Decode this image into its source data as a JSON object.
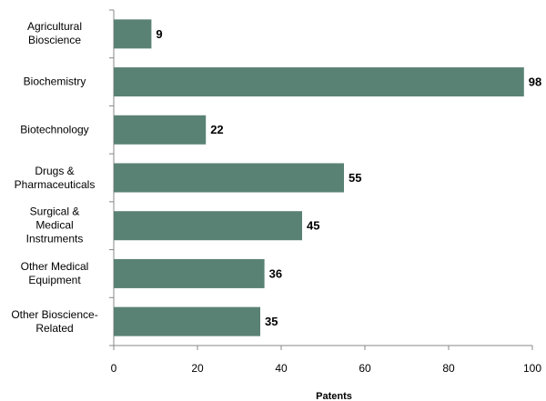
{
  "chart_data": {
    "type": "hbar",
    "categories": [
      "Agricultural\nBioscience",
      "Biochemistry",
      "Biotechnology",
      "Drugs &\nPharmaceuticals",
      "Surgical &\nMedical\nInstruments",
      "Other Medical\nEquipment",
      "Other Bioscience-\nRelated"
    ],
    "values": [
      9,
      98,
      22,
      55,
      45,
      36,
      35
    ],
    "color": "#5a8274",
    "xlabel": "Patents",
    "xlim": [
      0,
      100
    ],
    "xticks": [
      0,
      20,
      40,
      60,
      80,
      100
    ]
  }
}
